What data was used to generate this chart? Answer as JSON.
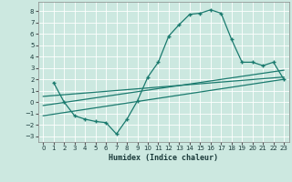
{
  "title": "",
  "xlabel": "Humidex (Indice chaleur)",
  "ylabel": "",
  "bg_color": "#cce8e0",
  "grid_color": "#ffffff",
  "line_color": "#1a7a6e",
  "xlim": [
    -0.5,
    23.5
  ],
  "ylim": [
    -3.5,
    8.8
  ],
  "xticks": [
    0,
    1,
    2,
    3,
    4,
    5,
    6,
    7,
    8,
    9,
    10,
    11,
    12,
    13,
    14,
    15,
    16,
    17,
    18,
    19,
    20,
    21,
    22,
    23
  ],
  "yticks": [
    -3,
    -2,
    -1,
    0,
    1,
    2,
    3,
    4,
    5,
    6,
    7,
    8
  ],
  "curve_x": [
    1,
    2,
    3,
    4,
    5,
    6,
    7,
    8,
    9,
    10,
    11,
    12,
    13,
    14,
    15,
    16,
    17,
    18,
    19,
    20,
    21,
    22,
    23
  ],
  "curve_y": [
    1.7,
    0.0,
    -1.2,
    -1.5,
    -1.7,
    -1.8,
    -2.8,
    -1.5,
    0.1,
    2.2,
    3.5,
    5.8,
    6.8,
    7.7,
    7.8,
    8.1,
    7.8,
    5.5,
    3.5,
    3.5,
    3.2,
    3.5,
    2.0
  ],
  "line1_x": [
    0,
    23
  ],
  "line1_y": [
    -1.2,
    2.0
  ],
  "line2_x": [
    0,
    23
  ],
  "line2_y": [
    -0.3,
    2.8
  ],
  "line3_x": [
    0,
    23
  ],
  "line3_y": [
    0.5,
    2.2
  ]
}
